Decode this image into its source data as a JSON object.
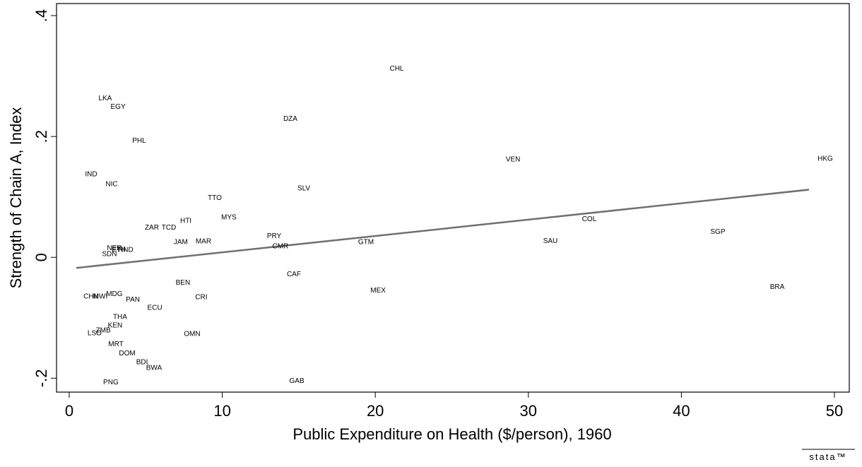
{
  "chart_data": {
    "type": "scatter",
    "xlabel": "Public Expenditure on Health ($/person), 1960",
    "ylabel": "Strength of Chain A, Index",
    "watermark": "stata™",
    "xlim": [
      -0.83,
      50.97
    ],
    "ylim": [
      -0.223,
      0.42
    ],
    "xticks": [
      0,
      10,
      20,
      30,
      40,
      50
    ],
    "yticks": [
      {
        "value": -0.2,
        "label": "-.2"
      },
      0,
      {
        "value": 0.2,
        "label": ".2"
      },
      {
        "value": 0.4,
        "label": ".4"
      }
    ],
    "labels": [
      "CHL",
      "LKA",
      "EGY",
      "DZA",
      "PHL",
      "VEN",
      "HKG",
      "IND",
      "NIC",
      "SLV",
      "TTO",
      "MYS",
      "COL",
      "HTI",
      "ZAR",
      "TCD",
      "SGP",
      "PRY",
      "SAU",
      "GTM",
      "JAM",
      "MAR",
      "CMR",
      "NER",
      "ETH",
      "HND",
      "SDN",
      "CAF",
      "BEN",
      "MEX",
      "BRA",
      "CRI",
      "MDG",
      "MWI",
      "CHN",
      "PAN",
      "ECU",
      "THA",
      "KEN",
      "ZMB",
      "LSO",
      "OMN",
      "MRT",
      "DOM",
      "BDI",
      "BWA",
      "PNG",
      "GAB"
    ],
    "x": [
      21.4,
      2.35,
      3.19,
      14.45,
      4.57,
      29.0,
      49.4,
      1.43,
      2.77,
      15.33,
      9.51,
      10.43,
      33.98,
      7.62,
      5.4,
      6.51,
      42.38,
      13.39,
      31.44,
      19.39,
      7.29,
      8.77,
      13.8,
      2.95,
      3.23,
      3.69,
      2.63,
      14.68,
      7.43,
      20.18,
      46.26,
      8.63,
      2.95,
      2.03,
      1.43,
      4.16,
      5.59,
      3.32,
      3.0,
      2.22,
      1.66,
      8.03,
      3.05,
      3.79,
      4.76,
      5.54,
      2.72,
      14.87
    ],
    "y": [
      0.313,
      0.264,
      0.25,
      0.23,
      0.194,
      0.163,
      0.164,
      0.138,
      0.122,
      0.115,
      0.099,
      0.067,
      0.064,
      0.061,
      0.05,
      0.05,
      0.043,
      0.036,
      0.028,
      0.026,
      0.026,
      0.027,
      0.019,
      0.016,
      0.014,
      0.013,
      0.006,
      -0.027,
      -0.041,
      -0.054,
      -0.048,
      -0.065,
      -0.06,
      -0.064,
      -0.064,
      -0.069,
      -0.083,
      -0.098,
      -0.112,
      -0.12,
      -0.125,
      -0.126,
      -0.143,
      -0.158,
      -0.173,
      -0.182,
      -0.206,
      -0.204
    ],
    "fit_line": {
      "color": "#707070",
      "x": [
        0.46,
        48.34
      ],
      "y": [
        -0.0175,
        0.112
      ]
    }
  }
}
